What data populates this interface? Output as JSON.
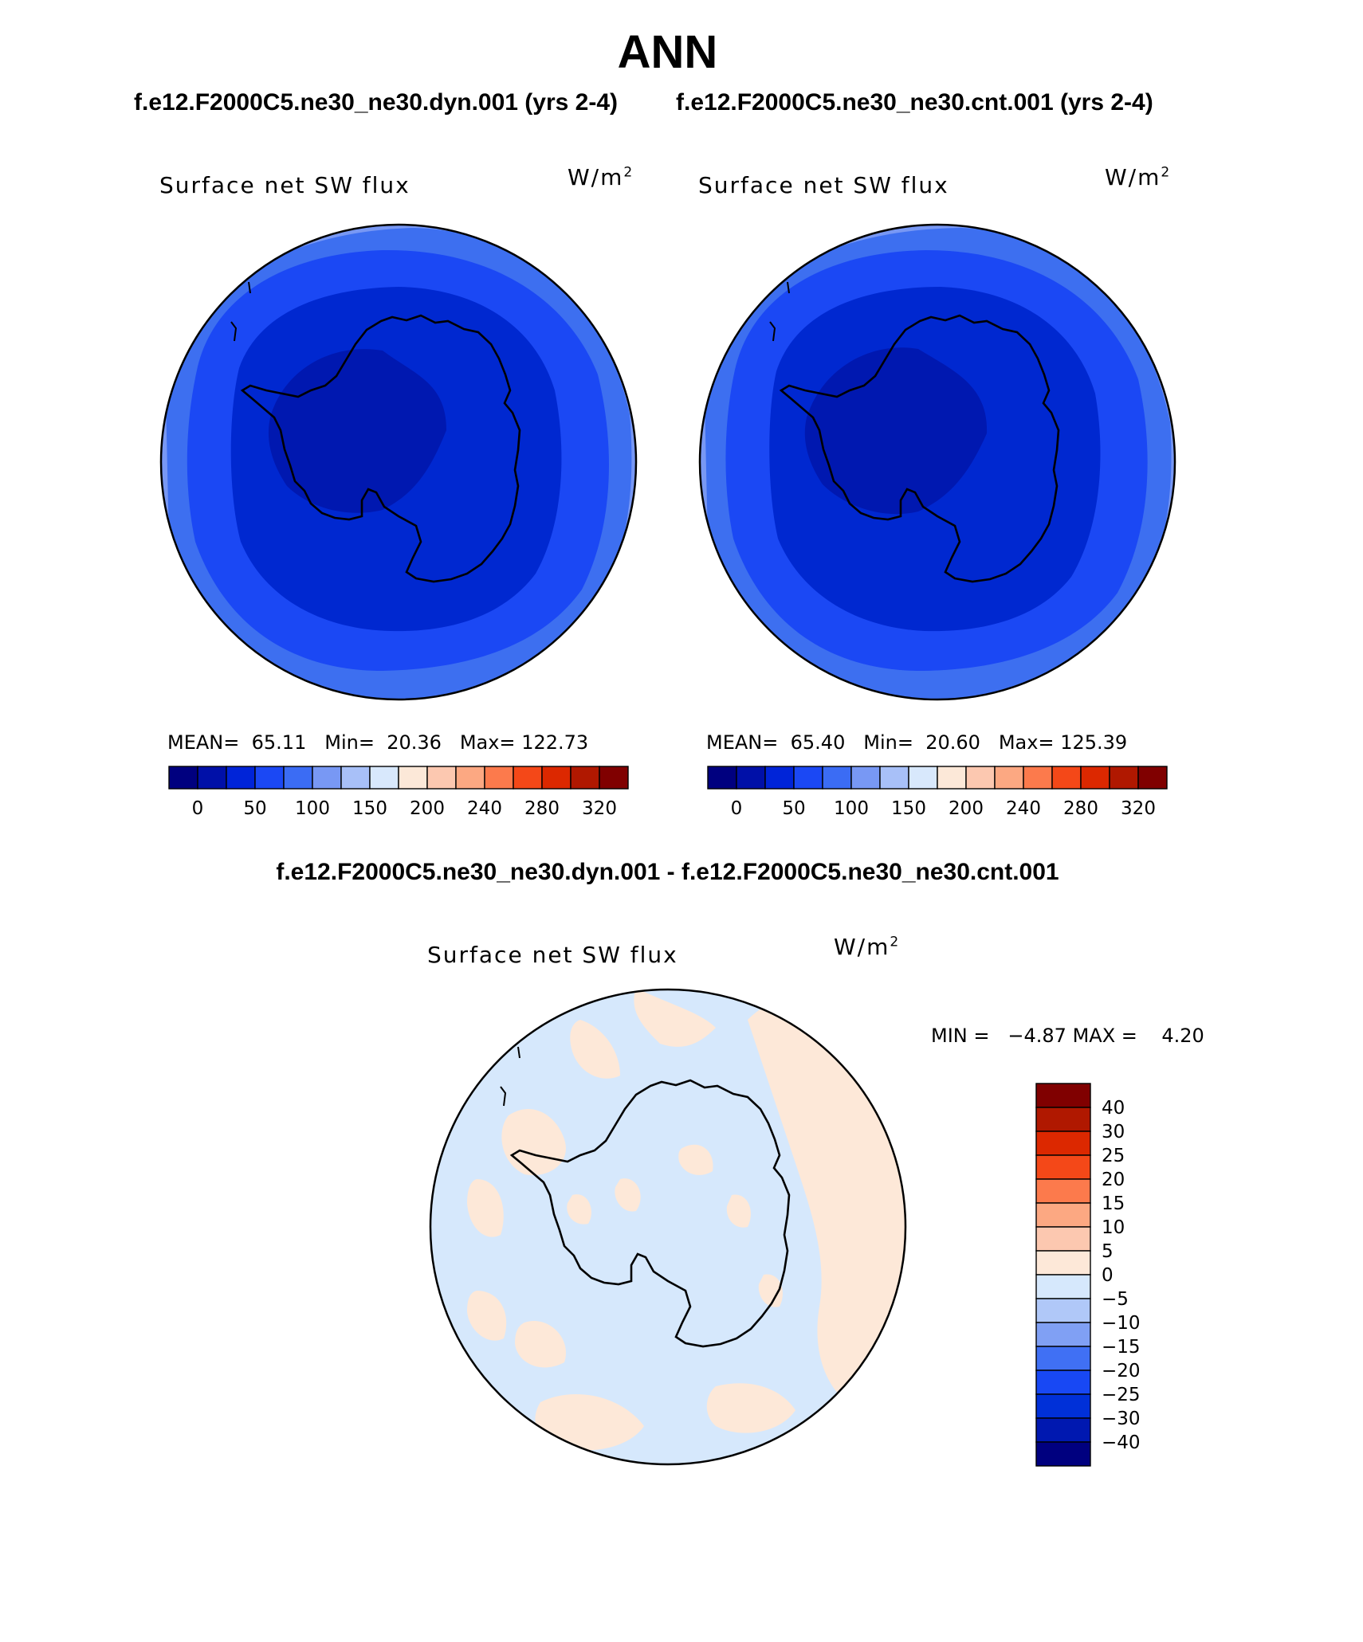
{
  "figure": {
    "season": "ANN",
    "case_a_header": "f.e12.F2000C5.ne30_ne30.dyn.001 (yrs 2-4)",
    "case_b_header": "f.e12.F2000C5.ne30_ne30.cnt.001 (yrs 2-4)",
    "diff_header": "f.e12.F2000C5.ne30_ne30.dyn.001 - f.e12.F2000C5.ne30_ne30.cnt.001"
  },
  "panel_a": {
    "variable": "Surface net SW flux",
    "unit_base": "W/m",
    "unit_exp": "2",
    "mean_label": "MEAN=",
    "mean_value": "65.11",
    "min_label": "Min=",
    "min_value": "20.36",
    "max_label": "Max=",
    "max_value": "122.73"
  },
  "panel_b": {
    "variable": "Surface net SW flux",
    "unit_base": "W/m",
    "unit_exp": "2",
    "mean_label": "MEAN=",
    "mean_value": "65.40",
    "min_label": "Min=",
    "min_value": "20.60",
    "max_label": "Max=",
    "max_value": "125.39"
  },
  "panel_diff": {
    "variable": "Surface net SW flux",
    "unit_base": "W/m",
    "unit_exp": "2",
    "min_label": "MIN =",
    "min_value": "−4.87",
    "max_label": "MAX =",
    "max_value": "4.20"
  },
  "colors": {
    "flux_scale": [
      "#00007f",
      "#0010a8",
      "#0024d8",
      "#1b48f4",
      "#3b6cf4",
      "#7898f4",
      "#a8c0f8",
      "#d8e8fc",
      "#fce8d8",
      "#fcc8b0",
      "#fca882",
      "#fc7a4c",
      "#f44818",
      "#dc2800",
      "#b01800",
      "#800000"
    ],
    "diff_scale": [
      "#00007f",
      "#0018b0",
      "#0030d8",
      "#1848f4",
      "#4070f4",
      "#80a0f4",
      "#b0c8f8",
      "#d6e8fc",
      "#fde8d8",
      "#fcc8b0",
      "#fca882",
      "#fc7a4c",
      "#f44818",
      "#dc2800",
      "#b01800",
      "#800000"
    ],
    "ocean_outer": "#3d6ff0",
    "ocean_mid": "#1b48f4",
    "ocean_inner": "#0028d0",
    "continent_core": "#0018b0",
    "outer_ring": "#7898f4",
    "diff_negative": "#d6e8fc",
    "diff_positive": "#fde8d8",
    "coast": "#000000"
  },
  "chart_data": [
    {
      "type": "heatmap",
      "title": "Surface net SW flux",
      "subtitle": "f.e12.F2000C5.ne30_ne30.dyn.001 (yrs 2-4)",
      "units": "W/m2",
      "projection": "south polar stereographic",
      "colorbar_levels": [
        "0",
        "50",
        "100",
        "150",
        "200",
        "240",
        "280",
        "320"
      ],
      "stats": {
        "mean": 65.11,
        "min": 20.36,
        "max": 122.73
      }
    },
    {
      "type": "heatmap",
      "title": "Surface net SW flux",
      "subtitle": "f.e12.F2000C5.ne30_ne30.cnt.001 (yrs 2-4)",
      "units": "W/m2",
      "projection": "south polar stereographic",
      "colorbar_levels": [
        "0",
        "50",
        "100",
        "150",
        "200",
        "240",
        "280",
        "320"
      ],
      "stats": {
        "mean": 65.4,
        "min": 20.6,
        "max": 125.39
      }
    },
    {
      "type": "heatmap",
      "title": "Surface net SW flux",
      "subtitle": "f.e12.F2000C5.ne30_ne30.dyn.001 - f.e12.F2000C5.ne30_ne30.cnt.001",
      "units": "W/m2",
      "projection": "south polar stereographic",
      "colorbar_levels": [
        "40",
        "30",
        "25",
        "20",
        "15",
        "10",
        "5",
        "0",
        "−5",
        "−10",
        "−15",
        "−20",
        "−25",
        "−30",
        "−40"
      ],
      "stats": {
        "min": -4.87,
        "max": 4.2
      }
    }
  ]
}
